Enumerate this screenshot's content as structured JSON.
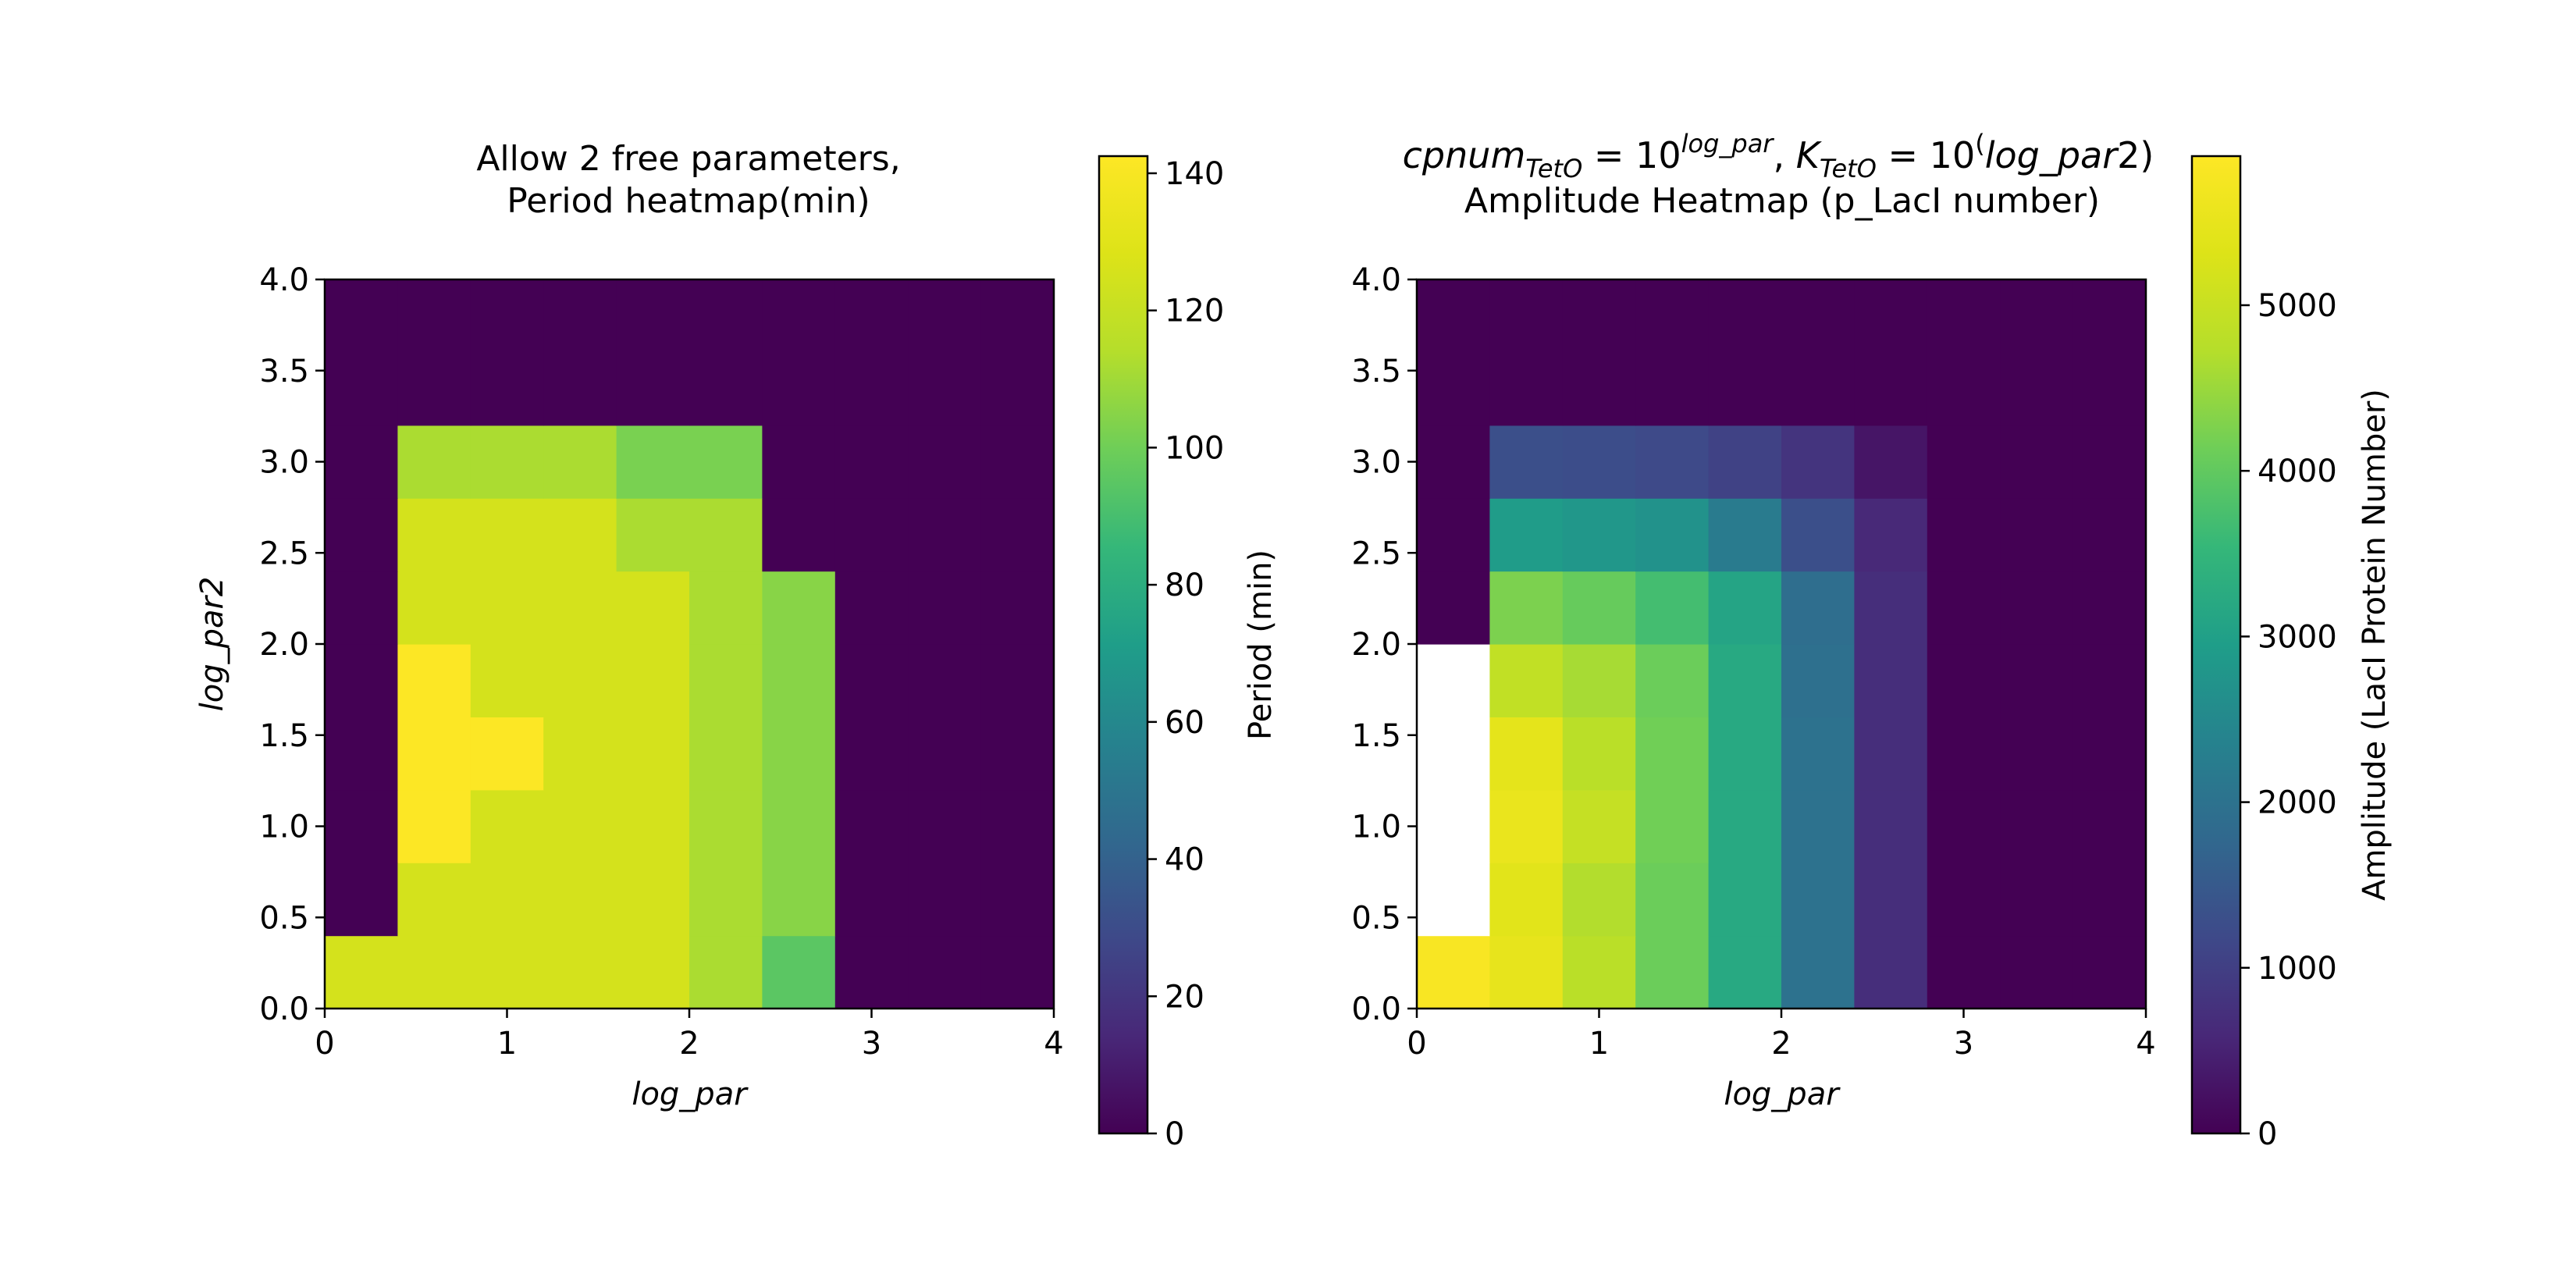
{
  "chart_data": [
    {
      "type": "heatmap",
      "title_lines": [
        "Allow 2 free parameters,",
        "Period heatmap(min)"
      ],
      "xlabel": "log_par",
      "ylabel": "log_par2",
      "xlim": [
        0,
        4
      ],
      "ylim": [
        0,
        4
      ],
      "xticks": [
        "0",
        "1",
        "2",
        "3",
        "4"
      ],
      "yticks": [
        "0.0",
        "0.5",
        "1.0",
        "1.5",
        "2.0",
        "2.5",
        "3.0",
        "3.5",
        "4.0"
      ],
      "x_edges": [
        0,
        0.4,
        0.8,
        1.2,
        1.6,
        2.0,
        2.4,
        2.8,
        3.2,
        3.6,
        4.0
      ],
      "y_edges": [
        0,
        0.4,
        0.8,
        1.2,
        1.6,
        2.0,
        2.4,
        2.8,
        3.2,
        3.6,
        4.0
      ],
      "row_order": "bottom-to-top",
      "values": [
        [
          125,
          125,
          125,
          125,
          125,
          112,
          95,
          0,
          0,
          0
        ],
        [
          0,
          125,
          125,
          125,
          125,
          112,
          105,
          0,
          0,
          0
        ],
        [
          0,
          142,
          125,
          125,
          125,
          112,
          105,
          0,
          0,
          0
        ],
        [
          0,
          142,
          142,
          125,
          125,
          112,
          105,
          0,
          0,
          0
        ],
        [
          0,
          142,
          125,
          125,
          125,
          112,
          105,
          0,
          0,
          0
        ],
        [
          0,
          125,
          125,
          125,
          125,
          112,
          105,
          0,
          0,
          0
        ],
        [
          0,
          125,
          125,
          125,
          112,
          112,
          0,
          0,
          0,
          0
        ],
        [
          0,
          112,
          112,
          112,
          102,
          102,
          0,
          0,
          0,
          0
        ],
        [
          0,
          0,
          0,
          0,
          0,
          0,
          0,
          0,
          0,
          0
        ],
        [
          0,
          0,
          0,
          0,
          0,
          0,
          0,
          0,
          0,
          0
        ]
      ],
      "colorbar": {
        "label": "Period (min)",
        "vmin": 0,
        "vmax": 142.5,
        "ticks": [
          0,
          20,
          40,
          60,
          80,
          100,
          120,
          140
        ]
      },
      "colormap": "viridis"
    },
    {
      "type": "heatmap",
      "title_formula": {
        "parts": [
          {
            "t": "cpnum",
            "style": "italic"
          },
          {
            "t": "TetO",
            "style": "italic-sub"
          },
          {
            "t": " = 10",
            "style": "normal"
          },
          {
            "t": "log_par",
            "style": "italic-sup"
          },
          {
            "t": ",  ",
            "style": "normal"
          },
          {
            "t": "K",
            "style": "italic"
          },
          {
            "t": "TetO",
            "style": "italic-sub"
          },
          {
            "t": " = 10",
            "style": "normal"
          },
          {
            "t": "(",
            "style": "normal-sup"
          },
          {
            "t": "log_par",
            "style": "italic"
          },
          {
            "t": "2)",
            "style": "normal"
          }
        ]
      },
      "title_line2": "Amplitude Heatmap (p_LacI number)",
      "xlabel": "log_par",
      "xlim": [
        0,
        4
      ],
      "ylim": [
        0,
        4
      ],
      "xticks": [
        "0",
        "1",
        "2",
        "3",
        "4"
      ],
      "yticks": [
        "0.0",
        "0.5",
        "1.0",
        "1.5",
        "2.0",
        "2.5",
        "3.0",
        "3.5",
        "4.0"
      ],
      "x_edges": [
        0,
        0.4,
        0.8,
        1.2,
        1.6,
        2.0,
        2.4,
        2.8,
        3.2,
        3.6,
        4.0
      ],
      "y_edges": [
        0,
        0.4,
        0.8,
        1.2,
        1.6,
        2.0,
        2.4,
        2.8,
        3.2,
        3.6,
        4.0
      ],
      "row_order": "bottom-to-top",
      "values": [
        [
          5800,
          5500,
          4800,
          4100,
          3200,
          2000,
          700,
          0,
          0,
          0
        ],
        [
          null,
          5400,
          4700,
          4100,
          3200,
          2000,
          700,
          0,
          0,
          0
        ],
        [
          null,
          5550,
          4950,
          4150,
          3200,
          2000,
          700,
          0,
          0,
          0
        ],
        [
          null,
          5450,
          4800,
          4150,
          3200,
          2000,
          700,
          0,
          0,
          0
        ],
        [
          null,
          4900,
          4600,
          4100,
          3200,
          1950,
          700,
          0,
          0,
          0
        ],
        [
          0,
          4250,
          4050,
          3700,
          3100,
          1900,
          700,
          0,
          0,
          0
        ],
        [
          0,
          2900,
          2800,
          2700,
          2200,
          1300,
          600,
          0,
          0,
          0
        ],
        [
          0,
          1300,
          1250,
          1200,
          1050,
          800,
          300,
          0,
          0,
          0
        ],
        [
          0,
          0,
          0,
          0,
          0,
          0,
          0,
          0,
          0,
          0
        ],
        [
          0,
          0,
          0,
          0,
          0,
          0,
          0,
          0,
          0,
          0
        ]
      ],
      "colorbar": {
        "label": "Amplitude (LacI Protein Number)",
        "vmin": 0,
        "vmax": 5900,
        "ticks": [
          0,
          1000,
          2000,
          3000,
          4000,
          5000
        ]
      },
      "colormap": "viridis"
    }
  ]
}
